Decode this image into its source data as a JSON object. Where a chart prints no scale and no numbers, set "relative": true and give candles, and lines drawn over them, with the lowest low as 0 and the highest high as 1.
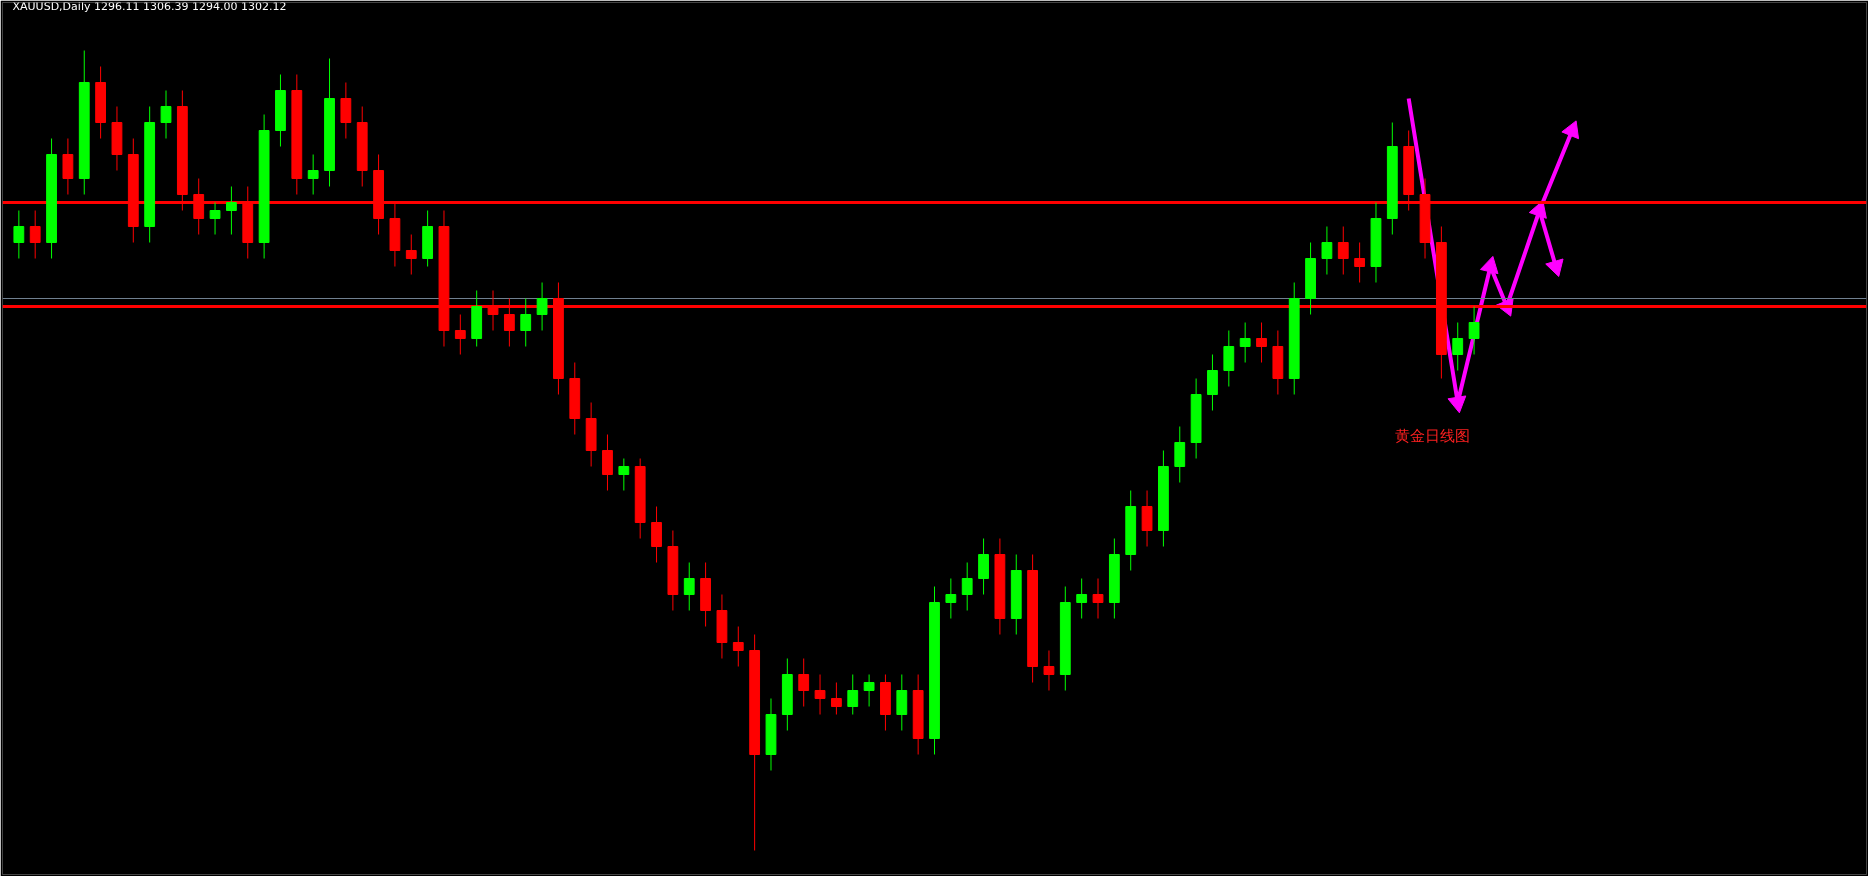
{
  "chart_data": {
    "type": "candlestick",
    "title": "XAUUSD,Daily  1296.11 1306.39 1294.00 1302.12",
    "relative": true,
    "grid": false,
    "tick_labels": false,
    "categories": [
      null,
      null,
      null,
      null,
      null,
      null,
      null,
      null,
      null,
      null,
      null,
      null,
      null,
      null,
      null,
      null,
      null,
      null,
      null,
      null,
      null,
      null,
      null,
      null,
      null,
      null,
      null,
      null,
      null,
      null,
      null,
      null,
      null,
      null,
      null,
      null,
      null,
      null,
      null,
      null,
      null,
      null,
      null,
      null,
      null,
      null,
      null,
      null,
      null,
      null,
      null,
      null,
      null,
      null,
      null,
      null,
      null,
      null,
      null,
      null,
      null,
      null,
      null,
      null,
      null,
      null,
      null,
      null,
      null,
      null,
      null,
      null,
      null,
      null,
      null,
      null,
      null,
      null,
      null,
      null,
      null,
      null,
      null,
      null,
      null,
      null,
      null,
      null,
      null,
      null,
      null,
      null,
      null,
      null,
      null,
      null,
      null,
      null,
      null,
      null,
      null,
      null,
      null,
      null,
      null,
      null,
      null,
      null,
      null,
      null,
      null,
      null,
      null
    ],
    "ohlc": [
      [
        0.76,
        0.8,
        0.74,
        0.78
      ],
      [
        0.78,
        0.8,
        0.74,
        0.76
      ],
      [
        0.76,
        0.89,
        0.74,
        0.87
      ],
      [
        0.87,
        0.89,
        0.82,
        0.84
      ],
      [
        0.84,
        1.0,
        0.82,
        0.96
      ],
      [
        0.96,
        0.98,
        0.89,
        0.91
      ],
      [
        0.91,
        0.93,
        0.85,
        0.87
      ],
      [
        0.87,
        0.89,
        0.76,
        0.78
      ],
      [
        0.78,
        0.93,
        0.76,
        0.91
      ],
      [
        0.91,
        0.95,
        0.89,
        0.93
      ],
      [
        0.93,
        0.95,
        0.8,
        0.82
      ],
      [
        0.82,
        0.84,
        0.77,
        0.79
      ],
      [
        0.79,
        0.81,
        0.77,
        0.8
      ],
      [
        0.8,
        0.83,
        0.77,
        0.81
      ],
      [
        0.81,
        0.83,
        0.74,
        0.76
      ],
      [
        0.76,
        0.92,
        0.74,
        0.9
      ],
      [
        0.9,
        0.97,
        0.88,
        0.95
      ],
      [
        0.95,
        0.97,
        0.82,
        0.84
      ],
      [
        0.84,
        0.87,
        0.82,
        0.85
      ],
      [
        0.85,
        0.99,
        0.83,
        0.94
      ],
      [
        0.94,
        0.96,
        0.89,
        0.91
      ],
      [
        0.91,
        0.93,
        0.83,
        0.85
      ],
      [
        0.85,
        0.87,
        0.77,
        0.79
      ],
      [
        0.79,
        0.81,
        0.73,
        0.75
      ],
      [
        0.75,
        0.77,
        0.72,
        0.74
      ],
      [
        0.74,
        0.8,
        0.73,
        0.78
      ],
      [
        0.78,
        0.8,
        0.63,
        0.65
      ],
      [
        0.65,
        0.67,
        0.62,
        0.64
      ],
      [
        0.64,
        0.7,
        0.63,
        0.68
      ],
      [
        0.68,
        0.7,
        0.65,
        0.67
      ],
      [
        0.67,
        0.69,
        0.63,
        0.65
      ],
      [
        0.65,
        0.69,
        0.63,
        0.67
      ],
      [
        0.67,
        0.71,
        0.65,
        0.69
      ],
      [
        0.69,
        0.71,
        0.57,
        0.59
      ],
      [
        0.59,
        0.61,
        0.52,
        0.54
      ],
      [
        0.54,
        0.56,
        0.48,
        0.5
      ],
      [
        0.5,
        0.52,
        0.45,
        0.47
      ],
      [
        0.47,
        0.49,
        0.45,
        0.48
      ],
      [
        0.48,
        0.49,
        0.39,
        0.41
      ],
      [
        0.41,
        0.43,
        0.36,
        0.38
      ],
      [
        0.38,
        0.4,
        0.3,
        0.32
      ],
      [
        0.32,
        0.36,
        0.3,
        0.34
      ],
      [
        0.34,
        0.36,
        0.28,
        0.3
      ],
      [
        0.3,
        0.32,
        0.24,
        0.26
      ],
      [
        0.26,
        0.28,
        0.23,
        0.25
      ],
      [
        0.25,
        0.27,
        0.0,
        0.12
      ],
      [
        0.12,
        0.19,
        0.1,
        0.17
      ],
      [
        0.17,
        0.24,
        0.15,
        0.22
      ],
      [
        0.22,
        0.24,
        0.18,
        0.2
      ],
      [
        0.2,
        0.22,
        0.17,
        0.19
      ],
      [
        0.19,
        0.21,
        0.17,
        0.18
      ],
      [
        0.18,
        0.22,
        0.17,
        0.2
      ],
      [
        0.2,
        0.22,
        0.18,
        0.21
      ],
      [
        0.21,
        0.22,
        0.15,
        0.17
      ],
      [
        0.17,
        0.22,
        0.15,
        0.2
      ],
      [
        0.2,
        0.22,
        0.12,
        0.14
      ],
      [
        0.14,
        0.33,
        0.12,
        0.31
      ],
      [
        0.31,
        0.34,
        0.29,
        0.32
      ],
      [
        0.32,
        0.36,
        0.3,
        0.34
      ],
      [
        0.34,
        0.39,
        0.32,
        0.37
      ],
      [
        0.37,
        0.39,
        0.27,
        0.29
      ],
      [
        0.29,
        0.37,
        0.27,
        0.35
      ],
      [
        0.35,
        0.37,
        0.21,
        0.23
      ],
      [
        0.23,
        0.25,
        0.2,
        0.22
      ],
      [
        0.22,
        0.33,
        0.2,
        0.31
      ],
      [
        0.31,
        0.34,
        0.29,
        0.32
      ],
      [
        0.32,
        0.34,
        0.29,
        0.31
      ],
      [
        0.31,
        0.39,
        0.29,
        0.37
      ],
      [
        0.37,
        0.45,
        0.35,
        0.43
      ],
      [
        0.43,
        0.45,
        0.38,
        0.4
      ],
      [
        0.4,
        0.5,
        0.38,
        0.48
      ],
      [
        0.48,
        0.53,
        0.46,
        0.51
      ],
      [
        0.51,
        0.59,
        0.49,
        0.57
      ],
      [
        0.57,
        0.62,
        0.55,
        0.6
      ],
      [
        0.6,
        0.65,
        0.58,
        0.63
      ],
      [
        0.63,
        0.66,
        0.61,
        0.64
      ],
      [
        0.64,
        0.66,
        0.61,
        0.63
      ],
      [
        0.63,
        0.65,
        0.57,
        0.59
      ],
      [
        0.59,
        0.71,
        0.57,
        0.69
      ],
      [
        0.69,
        0.76,
        0.67,
        0.74
      ],
      [
        0.74,
        0.78,
        0.72,
        0.76
      ],
      [
        0.76,
        0.78,
        0.72,
        0.74
      ],
      [
        0.74,
        0.76,
        0.71,
        0.73
      ],
      [
        0.73,
        0.81,
        0.71,
        0.79
      ],
      [
        0.79,
        0.91,
        0.77,
        0.88
      ],
      [
        0.88,
        0.9,
        0.8,
        0.82
      ],
      [
        0.82,
        0.84,
        0.74,
        0.76
      ],
      [
        0.76,
        0.78,
        0.59,
        0.62
      ],
      [
        0.62,
        0.66,
        0.6,
        0.64
      ],
      [
        0.64,
        0.68,
        0.62,
        0.66
      ],
      null,
      null,
      null,
      null,
      null,
      null,
      null,
      null,
      null,
      null,
      null,
      null,
      null,
      null,
      null,
      null,
      null,
      null,
      null,
      null,
      null,
      null,
      null
    ],
    "series": [
      {
        "type": "line",
        "color": "#ff00ff",
        "marker": "triangle",
        "values": [
          null,
          null,
          null,
          null,
          null,
          null,
          null,
          null,
          null,
          null,
          null,
          null,
          null,
          null,
          null,
          null,
          null,
          null,
          null,
          null,
          null,
          null,
          null,
          null,
          null,
          null,
          null,
          null,
          null,
          null,
          null,
          null,
          null,
          null,
          null,
          null,
          null,
          null,
          null,
          null,
          null,
          null,
          null,
          null,
          null,
          null,
          null,
          null,
          null,
          null,
          null,
          null,
          null,
          null,
          null,
          null,
          null,
          null,
          null,
          null,
          null,
          null,
          null,
          null,
          null,
          null,
          null,
          null,
          null,
          null,
          null,
          null,
          null,
          null,
          null,
          null,
          null,
          null,
          null,
          null,
          null,
          null,
          null,
          null,
          null,
          0.94,
          null,
          null,
          0.56,
          null,
          0.73,
          0.68,
          null,
          0.8,
          null,
          0.9,
          null,
          null,
          null,
          null,
          null,
          null,
          null,
          null,
          null,
          null,
          null,
          null,
          null,
          null,
          null,
          null,
          null
        ]
      },
      {
        "type": "line",
        "color": "#ff00ff",
        "marker": "triangle",
        "values": [
          null,
          null,
          null,
          null,
          null,
          null,
          null,
          null,
          null,
          null,
          null,
          null,
          null,
          null,
          null,
          null,
          null,
          null,
          null,
          null,
          null,
          null,
          null,
          null,
          null,
          null,
          null,
          null,
          null,
          null,
          null,
          null,
          null,
          null,
          null,
          null,
          null,
          null,
          null,
          null,
          null,
          null,
          null,
          null,
          null,
          null,
          null,
          null,
          null,
          null,
          null,
          null,
          null,
          null,
          null,
          null,
          null,
          null,
          null,
          null,
          null,
          null,
          null,
          null,
          null,
          null,
          null,
          null,
          null,
          null,
          null,
          null,
          null,
          null,
          null,
          null,
          null,
          null,
          null,
          null,
          null,
          null,
          null,
          null,
          null,
          null,
          null,
          null,
          null,
          null,
          null,
          null,
          null,
          0.8,
          0.73,
          null,
          null,
          null,
          null,
          null,
          null,
          null,
          null,
          null,
          null,
          null,
          null,
          null,
          null,
          null,
          null,
          null,
          null
        ]
      }
    ],
    "ref_lines": [
      {
        "axis": "y",
        "value": 0.81,
        "color": "#ff0000"
      },
      {
        "axis": "y",
        "value": 0.69,
        "color": "#708090"
      },
      {
        "axis": "y",
        "value": 0.68,
        "color": "#ff0000"
      }
    ],
    "annotations": [
      "黄金日线图"
    ]
  }
}
